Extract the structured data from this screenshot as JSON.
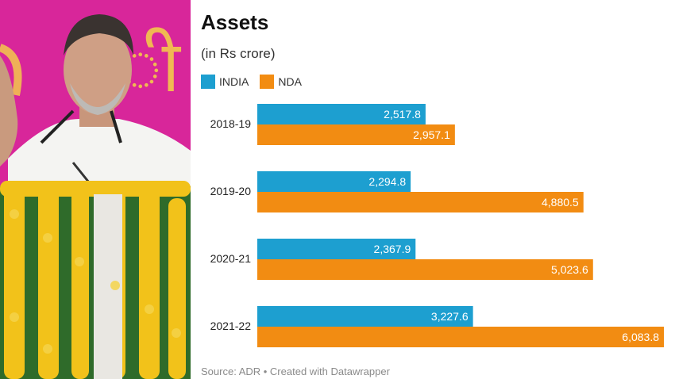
{
  "chart_data": {
    "type": "bar",
    "orientation": "horizontal",
    "title": "Assets",
    "subtitle": "(in Rs crore)",
    "categories": [
      "2018-19",
      "2019-20",
      "2020-21",
      "2021-22"
    ],
    "series": [
      {
        "name": "INDIA",
        "color": "#1d9fd0",
        "values": [
          2517.8,
          2294.8,
          2367.9,
          3227.6
        ],
        "labels": [
          "2,517.8",
          "2,294.8",
          "2,367.9",
          "3,227.6"
        ]
      },
      {
        "name": "NDA",
        "color": "#f28c12",
        "values": [
          2957.1,
          4880.5,
          5023.6,
          6083.8
        ],
        "labels": [
          "2,957.1",
          "4,880.5",
          "5,023.6",
          "6,083.8"
        ]
      }
    ],
    "xlim": [
      0,
      6083.8
    ],
    "grid": false,
    "legend_position": "top-left"
  },
  "source": "Source: ADR • Created with Datawrapper",
  "photo": {
    "alt": "politician-speaking-photo"
  }
}
